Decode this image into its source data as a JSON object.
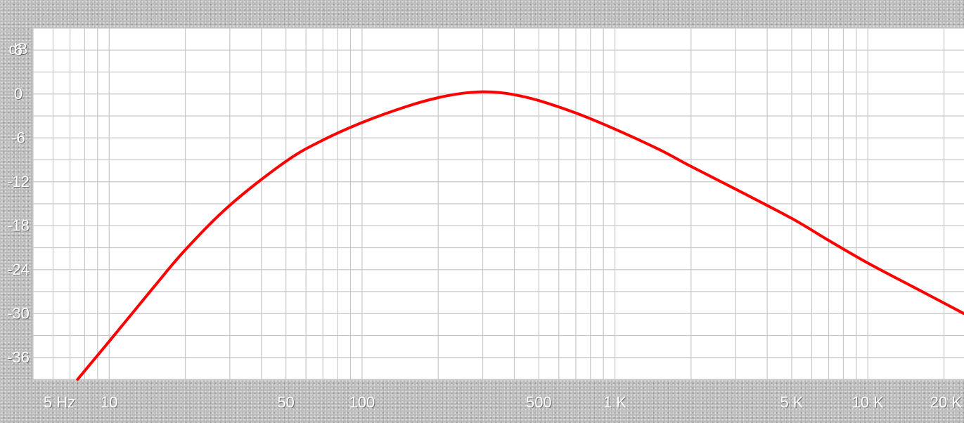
{
  "chart_data": {
    "type": "line",
    "x_scale": "log",
    "xlim": [
      5,
      24000
    ],
    "ylim": [
      -39,
      9
    ],
    "ylabel": "dB",
    "y_ticks": [
      6,
      0,
      -6,
      -12,
      -18,
      -24,
      -30,
      -36
    ],
    "y_tick_labels": [
      "6",
      "0",
      "-6",
      "-12",
      "-18",
      "-24",
      "-30",
      "-36"
    ],
    "x_ticks": [
      5,
      10,
      50,
      100,
      500,
      1000,
      5000,
      10000,
      20000
    ],
    "x_tick_labels": [
      "5 Hz",
      "10",
      "50",
      "100",
      "500",
      "1 K",
      "5 K",
      "10 K",
      "20 K"
    ],
    "grid": true,
    "background_color": "#ffffff",
    "grid_color": "#c8c8c8",
    "frame_color": "#c8c8c8",
    "series": [
      {
        "color": "#ff0000",
        "x": [
          7.5,
          10,
          15,
          20,
          30,
          50,
          70,
          100,
          150,
          200,
          250,
          300,
          350,
          400,
          500,
          700,
          1000,
          1500,
          2000,
          3000,
          5000,
          7000,
          10000,
          15000,
          24000
        ],
        "y": [
          -39,
          -33.8,
          -26.4,
          -21.3,
          -15.2,
          -9.2,
          -6.3,
          -3.9,
          -1.7,
          -0.5,
          0.1,
          0.3,
          0.2,
          -0.1,
          -0.9,
          -2.6,
          -4.8,
          -7.6,
          -9.9,
          -13.0,
          -17.0,
          -20.0,
          -23.1,
          -26.3,
          -30.0
        ]
      }
    ]
  }
}
